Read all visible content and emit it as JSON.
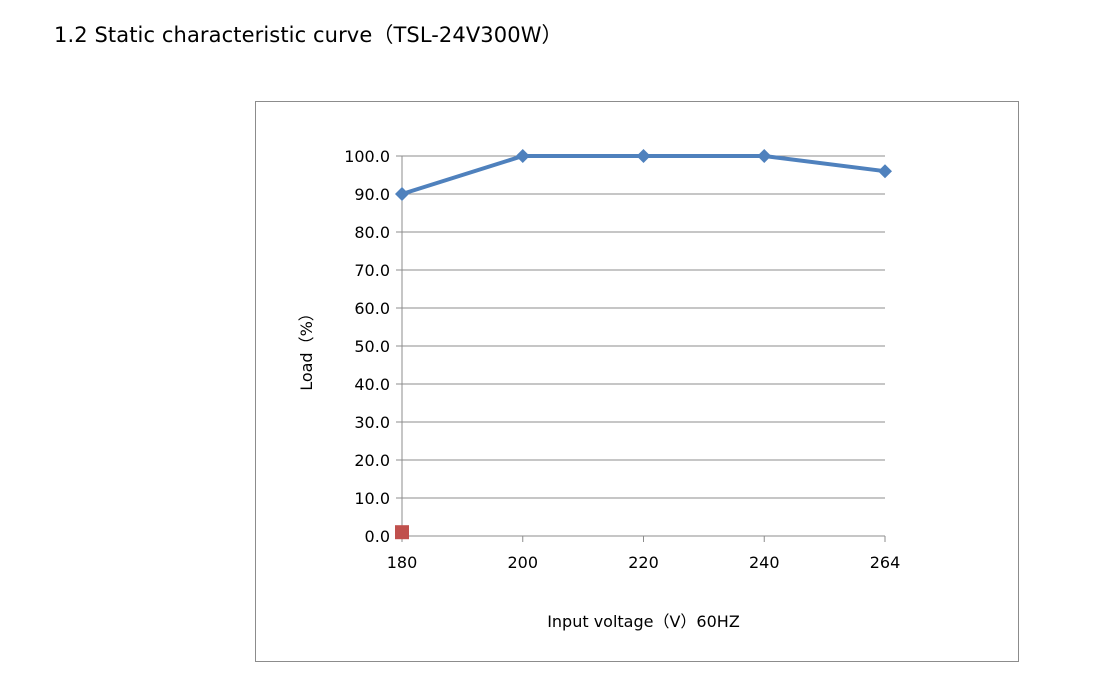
{
  "heading": "1.2 Static characteristic curve（TSL-24V300W）",
  "chart_data": {
    "type": "line",
    "title": "",
    "xlabel": "Input voltage（V）60HZ",
    "ylabel": "Load（%）",
    "categories": [
      "180",
      "200",
      "220",
      "240",
      "264"
    ],
    "ylim": [
      0,
      100
    ],
    "y_ticks": [
      "0.0",
      "10.0",
      "20.0",
      "30.0",
      "40.0",
      "50.0",
      "60.0",
      "70.0",
      "80.0",
      "90.0",
      "100.0"
    ],
    "grid": true,
    "legend": "none",
    "series": [
      {
        "values": [
          90,
          100,
          100,
          100,
          96
        ],
        "color": "#4f81bd",
        "marker": "diamond"
      },
      {
        "values": [
          1,
          null,
          null,
          null,
          null
        ],
        "color": "#c0504d",
        "marker": "square"
      }
    ]
  }
}
